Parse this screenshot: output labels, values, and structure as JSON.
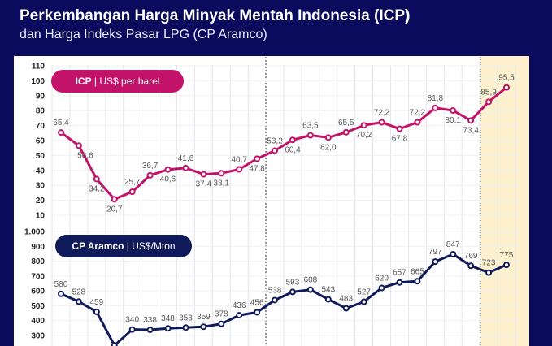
{
  "header": {
    "title": "Perkembangan Harga Minyak Mentah Indonesia (ICP)",
    "subtitle": "dan Harga Indeks Pasar LPG (CP Aramco)"
  },
  "colors": {
    "background": "#0b0b5e",
    "icp": "#c2126a",
    "cp": "#0f1a5a",
    "forecast_shade": "#fdf0cc"
  },
  "chart_data": [
    {
      "type": "line",
      "title": "ICP | US$ per barel",
      "legend": {
        "bold": "ICP",
        "rest": " | US$ per barel"
      },
      "ylim": [
        10,
        110
      ],
      "yticks": [
        110,
        100,
        90,
        80,
        70,
        60,
        50,
        40,
        30,
        20,
        10
      ],
      "grid": true,
      "series": [
        {
          "name": "ICP",
          "values": [
            65.4,
            56.6,
            34.2,
            20.7,
            25.7,
            36.7,
            40.6,
            41.6,
            37.4,
            38.1,
            40.7,
            47.8,
            53.2,
            60.4,
            63.5,
            62.0,
            65.5,
            70.2,
            72.2,
            67.8,
            72.2,
            81.8,
            80.1,
            73.4,
            85.9,
            95.5
          ]
        }
      ],
      "labels": [
        "65,4",
        "56,6",
        "34,2",
        "20,7",
        "25,7",
        "36,7",
        "40,6",
        "41,6",
        "37,4",
        "38,1",
        "40,7",
        "47,8",
        "53,2",
        "60,4",
        "63,5",
        "62,0",
        "65,5",
        "70,2",
        "72,2",
        "67,8",
        "72,2",
        "81,8",
        "80,1",
        "73,4",
        "85,9",
        "95,5"
      ]
    },
    {
      "type": "line",
      "title": "CP Aramco | US$/Mton",
      "legend": {
        "bold": "CP Aramco",
        "rest": " | US$/Mton"
      },
      "ylim": [
        300,
        1000
      ],
      "yticks": [
        "1.000",
        "900",
        "800",
        "700",
        "600",
        "500",
        "400",
        "300"
      ],
      "grid": true,
      "series": [
        {
          "name": "CP Aramco",
          "values": [
            580,
            528,
            459,
            233,
            340,
            338,
            348,
            353,
            359,
            378,
            436,
            456,
            538,
            593,
            608,
            543,
            483,
            527,
            620,
            657,
            665,
            797,
            847,
            769,
            723,
            775
          ]
        }
      ],
      "labels": [
        "580",
        "528",
        "459",
        "",
        "340",
        "338",
        "348",
        "353",
        "359",
        "378",
        "436",
        "456",
        "538",
        "593",
        "608",
        "543",
        "483",
        "527",
        "620",
        "657",
        "665",
        "797",
        "847",
        "769",
        "723",
        "775"
      ]
    }
  ]
}
